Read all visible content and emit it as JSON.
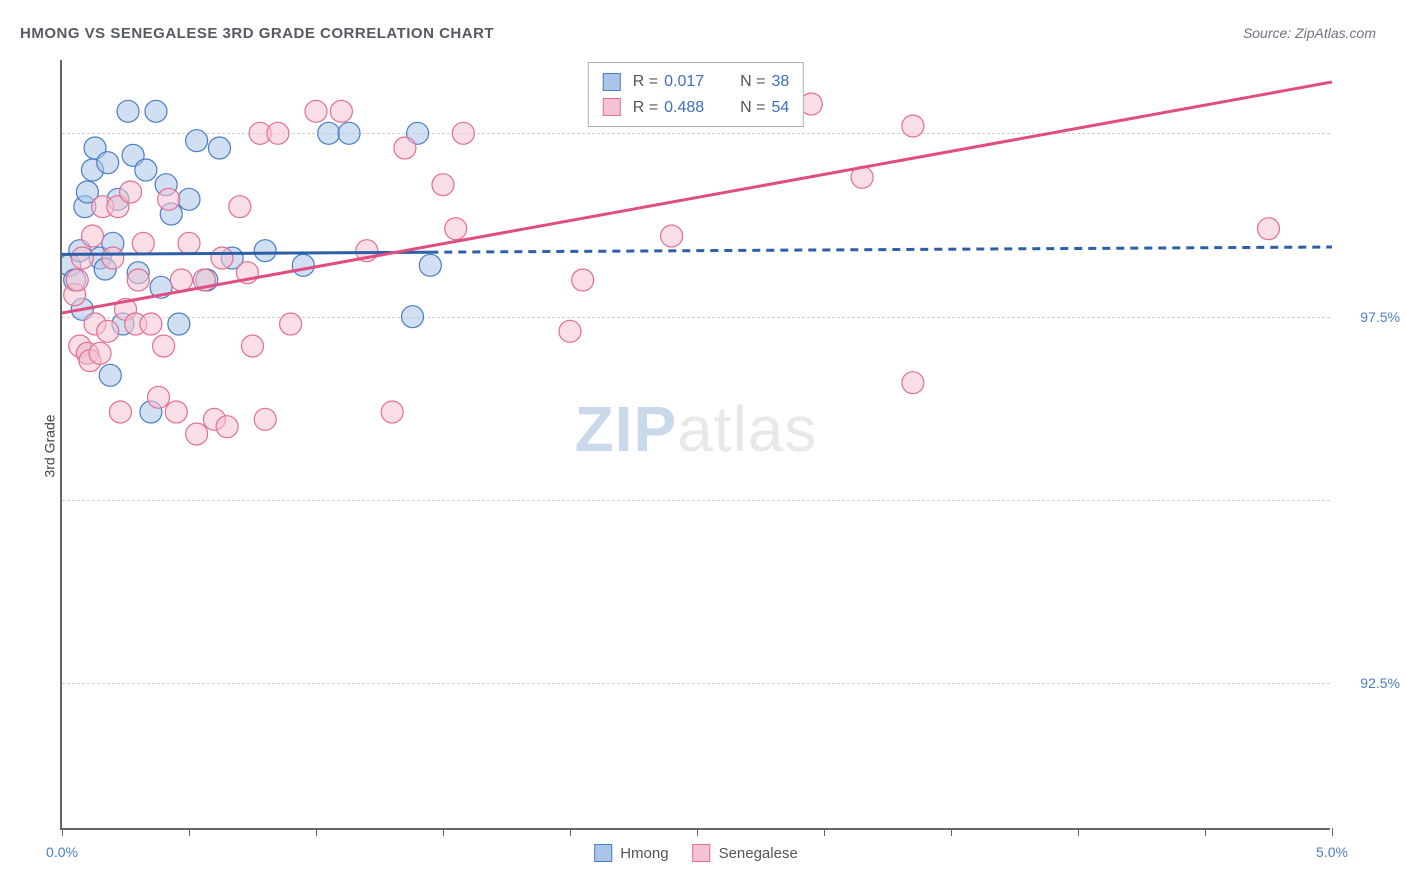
{
  "title_text": "HMONG VS SENEGALESE 3RD GRADE CORRELATION CHART",
  "source_text": "Source: ZipAtlas.com",
  "y_axis_label": "3rd Grade",
  "watermark_a": "ZIP",
  "watermark_b": "atlas",
  "chart": {
    "type": "scatter",
    "background_color": "#ffffff",
    "grid_color": "#d0d0d0",
    "axis_color": "#666666",
    "tick_label_color": "#4a7ec7",
    "title_fontsize": 15,
    "tick_fontsize": 14,
    "xlim": [
      0.0,
      5.0
    ],
    "ylim": [
      90.5,
      101.0
    ],
    "x_ticks": [
      0.0,
      0.5,
      1.0,
      1.5,
      2.0,
      2.5,
      3.0,
      3.5,
      4.0,
      4.5,
      5.0
    ],
    "x_tick_labels": {
      "0.0": "0.0%",
      "5.0": "5.0%"
    },
    "y_gridlines": [
      92.5,
      95.0,
      97.5,
      100.0
    ],
    "y_tick_labels": {
      "92.5": "92.5%",
      "95.0": "95.0%",
      "97.5": "97.5%",
      "100.0": "100.0%"
    },
    "series": [
      {
        "name": "Hmong",
        "fill_color": "#a9c6e8",
        "stroke_color": "#4a7ec7",
        "fill_opacity": 0.55,
        "marker_radius": 11,
        "R": "0.017",
        "N": "38",
        "regression": {
          "x1": 0.0,
          "y1": 98.35,
          "x2": 5.0,
          "y2": 98.45,
          "solid_until_x": 1.45,
          "color": "#2d5fa8"
        },
        "points": [
          [
            0.03,
            98.2
          ],
          [
            0.05,
            98.0
          ],
          [
            0.07,
            98.4
          ],
          [
            0.08,
            97.6
          ],
          [
            0.09,
            99.0
          ],
          [
            0.1,
            99.2
          ],
          [
            0.1,
            97.0
          ],
          [
            0.12,
            99.5
          ],
          [
            0.13,
            99.8
          ],
          [
            0.15,
            98.3
          ],
          [
            0.17,
            98.15
          ],
          [
            0.18,
            99.6
          ],
          [
            0.19,
            96.7
          ],
          [
            0.2,
            98.5
          ],
          [
            0.22,
            99.1
          ],
          [
            0.24,
            97.4
          ],
          [
            0.26,
            100.3
          ],
          [
            0.28,
            99.7
          ],
          [
            0.3,
            98.1
          ],
          [
            0.33,
            99.5
          ],
          [
            0.35,
            96.2
          ],
          [
            0.37,
            100.3
          ],
          [
            0.39,
            97.9
          ],
          [
            0.41,
            99.3
          ],
          [
            0.43,
            98.9
          ],
          [
            0.46,
            97.4
          ],
          [
            0.5,
            99.1
          ],
          [
            0.53,
            99.9
          ],
          [
            0.57,
            98.0
          ],
          [
            0.62,
            99.8
          ],
          [
            0.67,
            98.3
          ],
          [
            0.8,
            98.4
          ],
          [
            0.95,
            98.2
          ],
          [
            1.05,
            100.0
          ],
          [
            1.13,
            100.0
          ],
          [
            1.38,
            97.5
          ],
          [
            1.4,
            100.0
          ],
          [
            1.45,
            98.2
          ]
        ]
      },
      {
        "name": "Senegalese",
        "fill_color": "#f5c3d1",
        "stroke_color": "#e36f94",
        "fill_opacity": 0.55,
        "marker_radius": 11,
        "R": "0.488",
        "N": "54",
        "regression": {
          "x1": 0.0,
          "y1": 97.55,
          "x2": 5.0,
          "y2": 100.7,
          "solid_until_x": 5.0,
          "color": "#e04d7e"
        },
        "points": [
          [
            0.05,
            97.8
          ],
          [
            0.06,
            98.0
          ],
          [
            0.07,
            97.1
          ],
          [
            0.08,
            98.3
          ],
          [
            0.1,
            97.0
          ],
          [
            0.11,
            96.9
          ],
          [
            0.12,
            98.6
          ],
          [
            0.13,
            97.4
          ],
          [
            0.15,
            97.0
          ],
          [
            0.16,
            99.0
          ],
          [
            0.18,
            97.3
          ],
          [
            0.2,
            98.3
          ],
          [
            0.22,
            99.0
          ],
          [
            0.23,
            96.2
          ],
          [
            0.25,
            97.6
          ],
          [
            0.27,
            99.2
          ],
          [
            0.29,
            97.4
          ],
          [
            0.3,
            98.0
          ],
          [
            0.32,
            98.5
          ],
          [
            0.35,
            97.4
          ],
          [
            0.38,
            96.4
          ],
          [
            0.4,
            97.1
          ],
          [
            0.42,
            99.1
          ],
          [
            0.45,
            96.2
          ],
          [
            0.47,
            98.0
          ],
          [
            0.5,
            98.5
          ],
          [
            0.53,
            95.9
          ],
          [
            0.56,
            98.0
          ],
          [
            0.6,
            96.1
          ],
          [
            0.63,
            98.3
          ],
          [
            0.65,
            96.0
          ],
          [
            0.7,
            99.0
          ],
          [
            0.73,
            98.1
          ],
          [
            0.75,
            97.1
          ],
          [
            0.78,
            100.0
          ],
          [
            0.8,
            96.1
          ],
          [
            0.85,
            100.0
          ],
          [
            0.9,
            97.4
          ],
          [
            1.0,
            100.3
          ],
          [
            1.1,
            100.3
          ],
          [
            1.2,
            98.4
          ],
          [
            1.3,
            96.2
          ],
          [
            1.35,
            99.8
          ],
          [
            1.5,
            99.3
          ],
          [
            1.55,
            98.7
          ],
          [
            1.58,
            100.0
          ],
          [
            2.0,
            97.3
          ],
          [
            2.05,
            98.0
          ],
          [
            2.4,
            98.6
          ],
          [
            2.95,
            100.4
          ],
          [
            3.15,
            99.4
          ],
          [
            3.35,
            96.6
          ],
          [
            4.75,
            98.7
          ],
          [
            3.35,
            100.1
          ]
        ]
      }
    ],
    "legend_bottom": [
      "Hmong",
      "Senegalese"
    ],
    "stats_labels": {
      "R": "R =",
      "N": "N ="
    }
  }
}
